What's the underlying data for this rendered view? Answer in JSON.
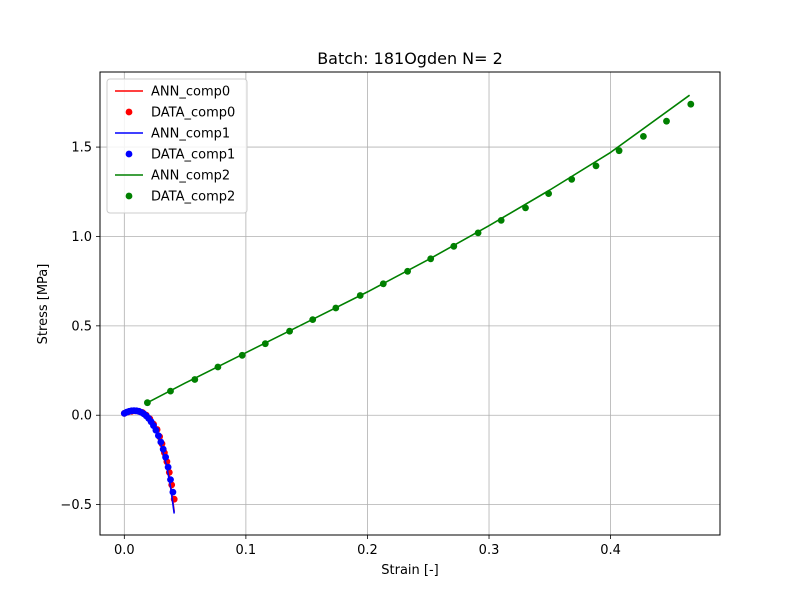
{
  "chart_data": {
    "type": "line",
    "title": "Batch: 181Ogden N= 2",
    "xlabel": "Strain [-]",
    "ylabel": "Stress [MPa]",
    "xlim": [
      -0.02,
      0.49
    ],
    "ylim": [
      -0.67,
      1.92
    ],
    "xticks": [
      0.0,
      0.1,
      0.2,
      0.3,
      0.4
    ],
    "xtick_labels": [
      "0.0",
      "0.1",
      "0.2",
      "0.3",
      "0.4"
    ],
    "yticks": [
      -0.5,
      0.0,
      0.5,
      1.0,
      1.5
    ],
    "ytick_labels": [
      "−0.5",
      "0.0",
      "0.5",
      "1.0",
      "1.5"
    ],
    "grid": true,
    "legend_position": "top-left",
    "series": [
      {
        "name": "ANN_comp0",
        "kind": "line",
        "color": "#ff0000",
        "x": [
          0.0,
          0.005,
          0.01,
          0.015,
          0.02,
          0.025,
          0.03,
          0.035,
          0.038,
          0.041
        ],
        "y": [
          0.01,
          0.02,
          0.025,
          0.015,
          -0.01,
          -0.06,
          -0.14,
          -0.27,
          -0.38,
          -0.54
        ]
      },
      {
        "name": "DATA_comp0",
        "kind": "scatter",
        "color": "#ff0000",
        "x": [
          0.0,
          0.003,
          0.006,
          0.009,
          0.012,
          0.015,
          0.018,
          0.021,
          0.024,
          0.027,
          0.029,
          0.031,
          0.033,
          0.035,
          0.037,
          0.039,
          0.041
        ],
        "y": [
          0.01,
          0.018,
          0.022,
          0.024,
          0.022,
          0.015,
          0.0,
          -0.02,
          -0.05,
          -0.08,
          -0.12,
          -0.16,
          -0.21,
          -0.26,
          -0.32,
          -0.39,
          -0.47
        ]
      },
      {
        "name": "ANN_comp1",
        "kind": "line",
        "color": "#0000ff",
        "x": [
          0.0,
          0.005,
          0.01,
          0.015,
          0.02,
          0.025,
          0.03,
          0.035,
          0.038,
          0.041
        ],
        "y": [
          0.01,
          0.02,
          0.025,
          0.015,
          -0.01,
          -0.07,
          -0.16,
          -0.29,
          -0.4,
          -0.55
        ]
      },
      {
        "name": "DATA_comp1",
        "kind": "scatter",
        "color": "#0000ff",
        "x": [
          0.0,
          0.002,
          0.004,
          0.006,
          0.008,
          0.01,
          0.012,
          0.014,
          0.016,
          0.018,
          0.02,
          0.022,
          0.024,
          0.026,
          0.028,
          0.03,
          0.032,
          0.034,
          0.036,
          0.038,
          0.04
        ],
        "y": [
          0.01,
          0.017,
          0.022,
          0.025,
          0.026,
          0.025,
          0.022,
          0.016,
          0.008,
          -0.003,
          -0.018,
          -0.036,
          -0.058,
          -0.084,
          -0.114,
          -0.15,
          -0.19,
          -0.235,
          -0.29,
          -0.36,
          -0.43
        ]
      },
      {
        "name": "ANN_comp2",
        "kind": "line",
        "color": "#008000",
        "x": [
          0.019,
          0.05,
          0.1,
          0.15,
          0.2,
          0.25,
          0.3,
          0.35,
          0.4,
          0.465
        ],
        "y": [
          0.07,
          0.18,
          0.35,
          0.52,
          0.69,
          0.87,
          1.06,
          1.26,
          1.47,
          1.79
        ]
      },
      {
        "name": "DATA_comp2",
        "kind": "scatter",
        "color": "#008000",
        "x": [
          0.019,
          0.038,
          0.058,
          0.077,
          0.097,
          0.116,
          0.136,
          0.155,
          0.174,
          0.194,
          0.213,
          0.233,
          0.252,
          0.271,
          0.291,
          0.31,
          0.33,
          0.349,
          0.368,
          0.388,
          0.407,
          0.427,
          0.446,
          0.466
        ],
        "y": [
          0.07,
          0.135,
          0.2,
          0.27,
          0.335,
          0.4,
          0.47,
          0.535,
          0.6,
          0.67,
          0.735,
          0.805,
          0.875,
          0.945,
          1.02,
          1.09,
          1.16,
          1.24,
          1.32,
          1.395,
          1.48,
          1.56,
          1.645,
          1.74
        ]
      }
    ]
  }
}
